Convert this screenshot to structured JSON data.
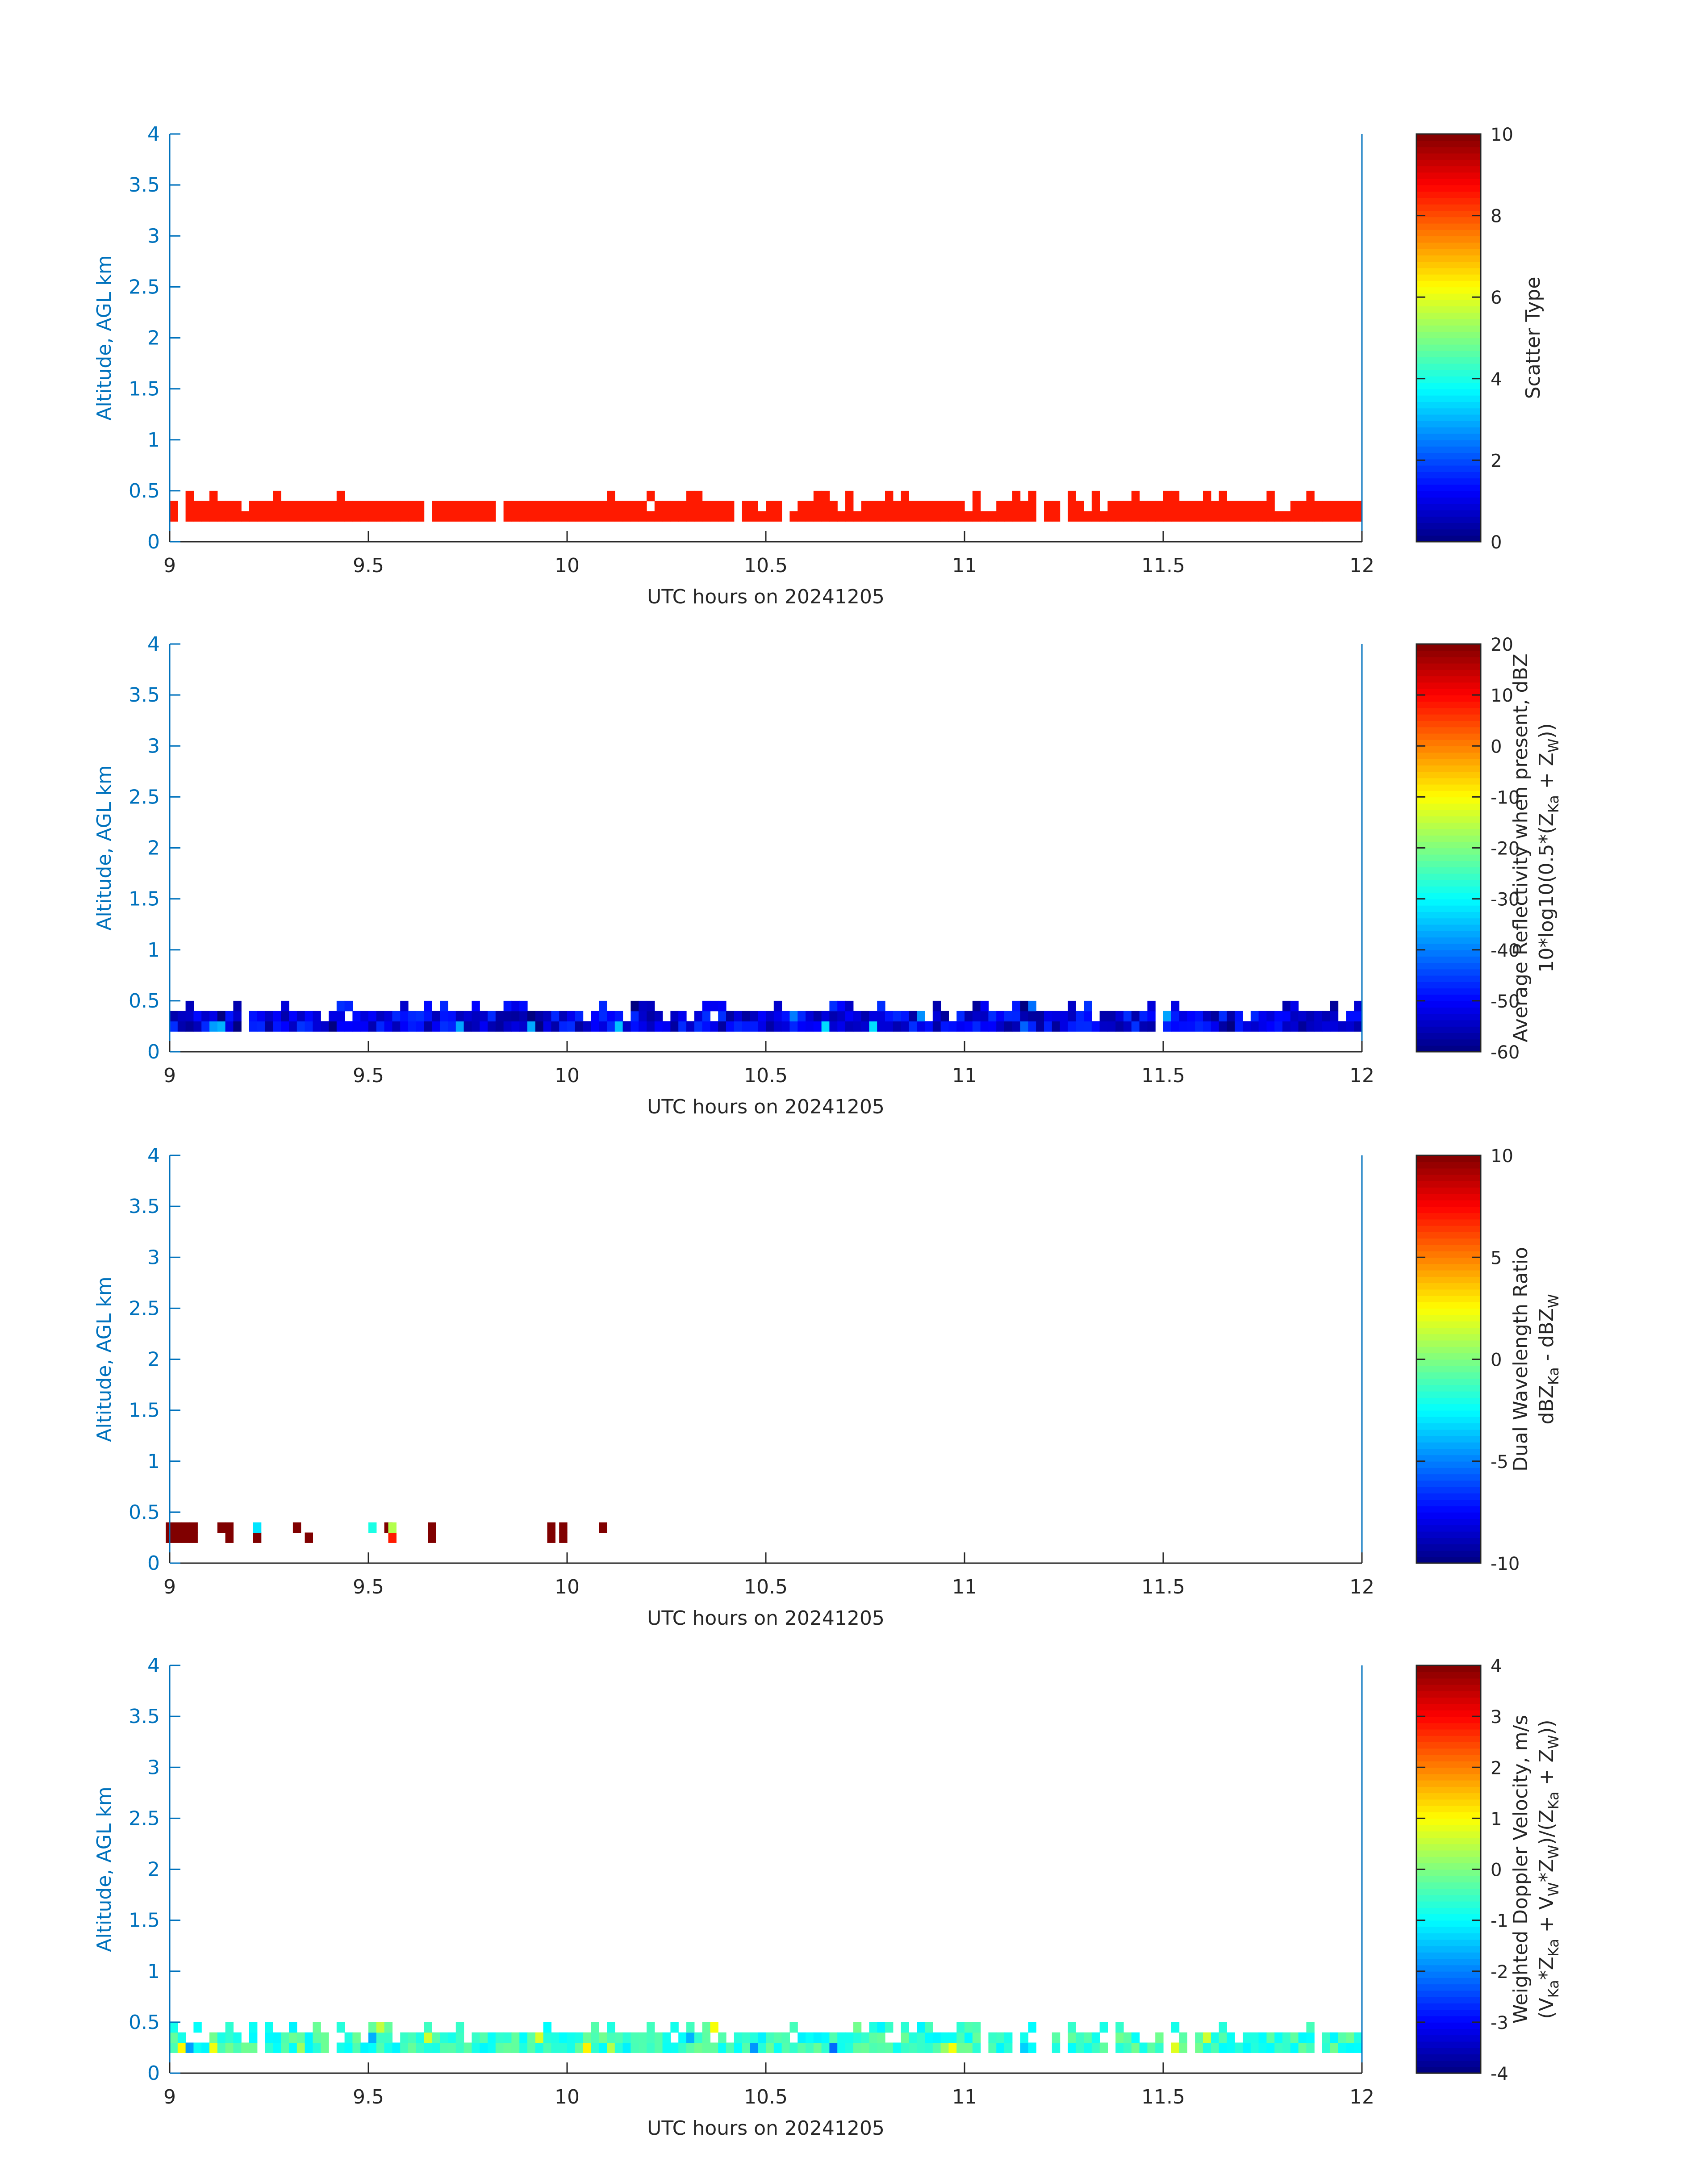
{
  "chart_data": [
    {
      "type": "heatmap",
      "xlabel": "UTC hours on 20241205",
      "ylabel": "Altitude, AGL km",
      "xlim": [
        9,
        12
      ],
      "ylim": [
        0,
        4
      ],
      "xticks": [
        9,
        9.5,
        10,
        10.5,
        11,
        11.5,
        12
      ],
      "xtick_labels": [
        "9",
        "9.5",
        "10",
        "10.5",
        "11",
        "11.5",
        "12"
      ],
      "yticks": [
        0,
        0.5,
        1,
        1.5,
        2,
        2.5,
        3,
        3.5,
        4
      ],
      "ytick_labels": [
        "0",
        "0.5",
        "1",
        "1.5",
        "2",
        "2.5",
        "3",
        "3.5",
        "4"
      ],
      "colorbar": {
        "label_lines": [
          "Scatter Type"
        ],
        "range": [
          0,
          10
        ],
        "ticks": [
          0,
          2,
          4,
          6,
          8,
          10
        ],
        "tick_labels": [
          "0",
          "2",
          "4",
          "6",
          "8",
          "10"
        ],
        "colormap": "jet"
      },
      "field": {
        "mode": "const",
        "value": 8.5,
        "coverage": 0.93,
        "base_km": 0.2,
        "top_km": 0.3
      }
    },
    {
      "type": "heatmap",
      "xlabel": "UTC hours on 20241205",
      "ylabel": "Altitude, AGL km",
      "xlim": [
        9,
        12
      ],
      "ylim": [
        0,
        4
      ],
      "xticks": [
        9,
        9.5,
        10,
        10.5,
        11,
        11.5,
        12
      ],
      "xtick_labels": [
        "9",
        "9.5",
        "10",
        "10.5",
        "11",
        "11.5",
        "12"
      ],
      "yticks": [
        0,
        0.5,
        1,
        1.5,
        2,
        2.5,
        3,
        3.5,
        4
      ],
      "ytick_labels": [
        "0",
        "0.5",
        "1",
        "1.5",
        "2",
        "2.5",
        "3",
        "3.5",
        "4"
      ],
      "colorbar": {
        "label_lines": [
          "Average Reflectivity when present, dBZ",
          "10*log10(0.5*(Z",
          "Ka",
          " + Z",
          "W",
          "))"
        ],
        "range": [
          -60,
          20
        ],
        "ticks": [
          -60,
          -50,
          -40,
          -30,
          -20,
          -10,
          0,
          10,
          20
        ],
        "tick_labels": [
          "-60",
          "-50",
          "-40",
          "-30",
          "-20",
          "-10",
          "0",
          "10",
          "20"
        ],
        "colormap": "jet"
      },
      "field": {
        "mode": "random",
        "center": -52,
        "spread": 6,
        "coverage": 0.95,
        "base_km": 0.2,
        "top_km": 0.3
      }
    },
    {
      "type": "heatmap",
      "xlabel": "UTC hours on 20241205",
      "ylabel": "Altitude, AGL km",
      "xlim": [
        9,
        12
      ],
      "ylim": [
        0,
        4
      ],
      "xticks": [
        9,
        9.5,
        10,
        10.5,
        11,
        11.5,
        12
      ],
      "xtick_labels": [
        "9",
        "9.5",
        "10",
        "10.5",
        "11",
        "11.5",
        "12"
      ],
      "yticks": [
        0,
        0.5,
        1,
        1.5,
        2,
        2.5,
        3,
        3.5,
        4
      ],
      "ytick_labels": [
        "0",
        "0.5",
        "1",
        "1.5",
        "2",
        "2.5",
        "3",
        "3.5",
        "4"
      ],
      "colorbar": {
        "label_lines": [
          "Dual Wavelength Ratio",
          "dBZ",
          "Ka",
          " - dBZ",
          "W"
        ],
        "range": [
          -10,
          10
        ],
        "ticks": [
          -10,
          -5,
          0,
          5,
          10
        ],
        "tick_labels": [
          "-10",
          "-5",
          "0",
          "5",
          "10"
        ],
        "colormap": "jet"
      },
      "field": {
        "mode": "points",
        "points": [
          [
            9.0,
            0.25,
            10
          ],
          [
            9.0,
            0.35,
            10
          ],
          [
            9.02,
            0.25,
            10
          ],
          [
            9.02,
            0.35,
            10
          ],
          [
            9.04,
            0.25,
            10
          ],
          [
            9.04,
            0.35,
            10
          ],
          [
            9.06,
            0.25,
            10
          ],
          [
            9.06,
            0.35,
            10
          ],
          [
            9.13,
            0.35,
            10
          ],
          [
            9.15,
            0.35,
            10
          ],
          [
            9.15,
            0.25,
            10
          ],
          [
            9.22,
            0.25,
            10
          ],
          [
            9.22,
            0.35,
            -3
          ],
          [
            9.32,
            0.35,
            10
          ],
          [
            9.35,
            0.25,
            10
          ],
          [
            9.51,
            0.35,
            -2
          ],
          [
            9.55,
            0.35,
            10
          ],
          [
            9.56,
            0.25,
            7
          ],
          [
            9.56,
            0.35,
            1
          ],
          [
            9.66,
            0.25,
            10
          ],
          [
            9.66,
            0.35,
            10
          ],
          [
            9.96,
            0.25,
            10
          ],
          [
            9.96,
            0.35,
            10
          ],
          [
            9.99,
            0.25,
            10
          ],
          [
            9.99,
            0.35,
            10
          ],
          [
            10.09,
            0.35,
            10
          ]
        ]
      }
    },
    {
      "type": "heatmap",
      "xlabel": "UTC hours on 20241205",
      "ylabel": "Altitude, AGL km",
      "xlim": [
        9,
        12
      ],
      "ylim": [
        0,
        4
      ],
      "xticks": [
        9,
        9.5,
        10,
        10.5,
        11,
        11.5,
        12
      ],
      "xtick_labels": [
        "9",
        "9.5",
        "10",
        "10.5",
        "11",
        "11.5",
        "12"
      ],
      "yticks": [
        0,
        0.5,
        1,
        1.5,
        2,
        2.5,
        3,
        3.5,
        4
      ],
      "ytick_labels": [
        "0",
        "0.5",
        "1",
        "1.5",
        "2",
        "2.5",
        "3",
        "3.5",
        "4"
      ],
      "colorbar": {
        "label_lines": [
          "Weighted Doppler Velocity, m/s",
          "(V",
          "Ka",
          "*Z",
          "Ka",
          " + V",
          "W",
          "*Z",
          "W",
          ")/(Z",
          "Ka",
          " + Z",
          "W",
          "))"
        ],
        "range": [
          -4,
          4
        ],
        "ticks": [
          -4,
          -3,
          -2,
          -1,
          0,
          1,
          2,
          3,
          4
        ],
        "tick_labels": [
          "-4",
          "-3",
          "-2",
          "-1",
          "0",
          "1",
          "2",
          "3",
          "4"
        ],
        "colormap": "jet"
      },
      "field": {
        "mode": "random",
        "center": -0.6,
        "spread": 0.5,
        "coverage": 0.95,
        "base_km": 0.2,
        "top_km": 0.3
      }
    }
  ]
}
